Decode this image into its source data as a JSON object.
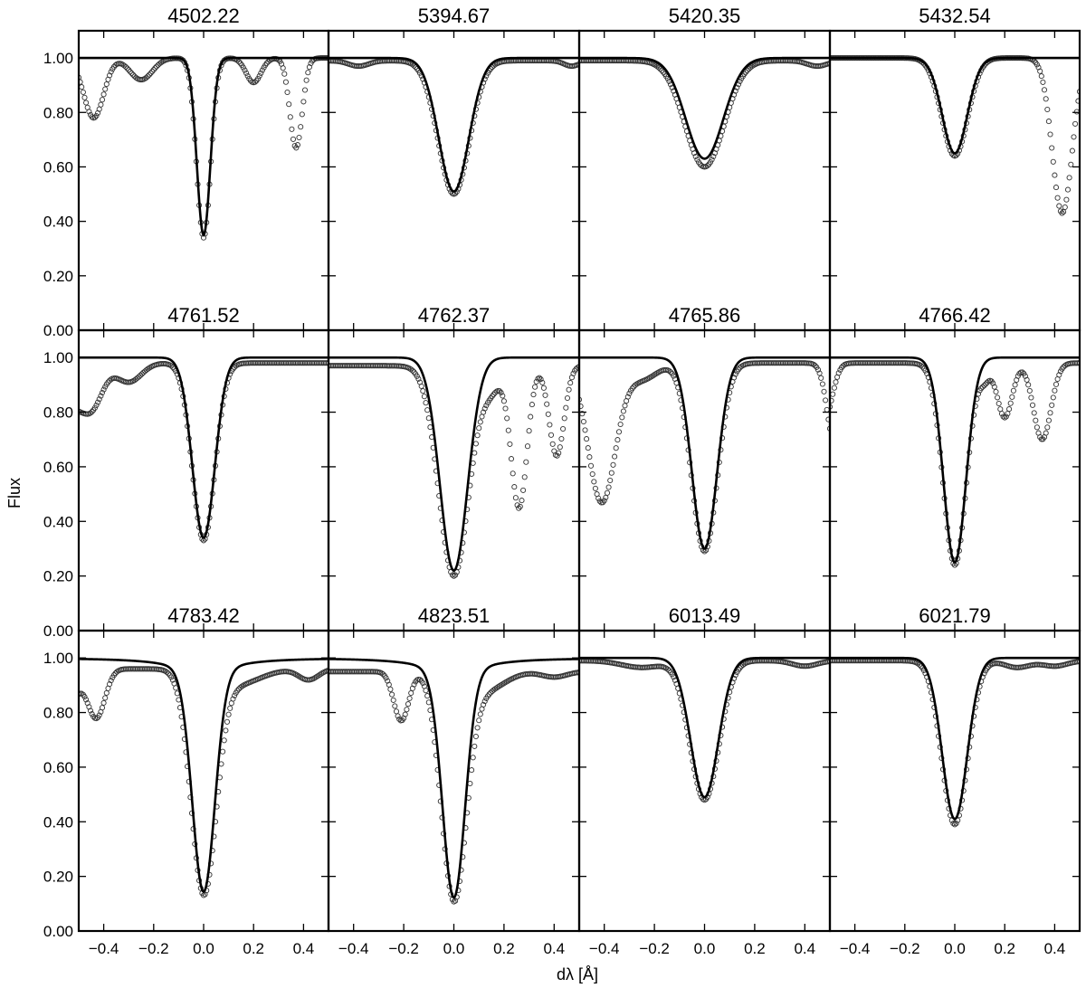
{
  "chart_data": {
    "type": "line",
    "layout": "4x3 grid of panels with shared axes",
    "xlabel": "dλ [Å]",
    "ylabel": "Flux",
    "xlim": [
      -0.5,
      0.5
    ],
    "ylim": [
      0.0,
      1.1
    ],
    "x_ticks": [
      -0.4,
      -0.2,
      0.0,
      0.2,
      0.4
    ],
    "x_tick_labels": [
      "−0.4",
      "−0.2",
      "0.0",
      "0.2",
      "0.4"
    ],
    "y_ticks": [
      0.0,
      0.2,
      0.4,
      0.6,
      0.8,
      1.0
    ],
    "y_tick_labels": [
      "0.00",
      "0.20",
      "0.40",
      "0.60",
      "0.80",
      "1.00"
    ],
    "grid": false,
    "series_styles": {
      "observed": "open circles",
      "model": "solid black line"
    },
    "panels": [
      {
        "title": "4502.22",
        "model": {
          "depth": 0.65,
          "center": 0.0,
          "sigma": 0.027,
          "wings": 0.0
        },
        "observed": {
          "depth": 0.66,
          "center": 0.0,
          "sigma": 0.028,
          "blends": [
            [
              -0.44,
              0.22,
              0.04
            ],
            [
              -0.25,
              0.08,
              0.045
            ],
            [
              0.2,
              0.09,
              0.03
            ],
            [
              0.37,
              0.33,
              0.025
            ]
          ]
        }
      },
      {
        "title": "5394.67",
        "model": {
          "depth": 0.49,
          "center": 0.0,
          "sigma": 0.06,
          "wings": 0.0
        },
        "observed": {
          "depth": 0.49,
          "center": 0.0,
          "sigma": 0.062,
          "baseline": 0.99,
          "blends": [
            [
              -0.38,
              0.02,
              0.04
            ],
            [
              0.47,
              0.02,
              0.03
            ]
          ]
        }
      },
      {
        "title": "5420.35",
        "model": {
          "depth": 0.37,
          "center": 0.0,
          "sigma": 0.075,
          "wings": 0.0
        },
        "observed": {
          "depth": 0.39,
          "center": 0.0,
          "sigma": 0.078,
          "baseline": 0.99,
          "blends": [
            [
              0.45,
              0.02,
              0.04
            ]
          ]
        }
      },
      {
        "title": "5432.54",
        "model": {
          "depth": 0.35,
          "center": 0.0,
          "sigma": 0.05,
          "wings": 0.0
        },
        "observed": {
          "depth": 0.36,
          "center": 0.0,
          "sigma": 0.052,
          "blends": [
            [
              0.43,
              0.57,
              0.04
            ]
          ]
        }
      },
      {
        "title": "4761.52",
        "model": {
          "depth": 0.66,
          "center": 0.0,
          "sigma": 0.045,
          "wings": 0.0
        },
        "observed": {
          "depth": 0.65,
          "center": 0.0,
          "sigma": 0.045,
          "baseline": 0.98,
          "blends": [
            [
              -0.45,
              0.16,
              0.045
            ],
            [
              -0.3,
              0.07,
              0.05
            ],
            [
              -0.55,
              0.15,
              0.05
            ]
          ]
        }
      },
      {
        "title": "4762.37",
        "model": {
          "depth": 0.78,
          "center": 0.0,
          "sigma": 0.055,
          "wings": 0.0
        },
        "observed": {
          "depth": 0.77,
          "center": 0.0,
          "sigma": 0.06,
          "baseline": 0.97,
          "blends": [
            [
              0.26,
              0.52,
              0.032
            ],
            [
              0.41,
              0.33,
              0.03
            ],
            [
              0.15,
              0.08,
              0.04
            ]
          ]
        }
      },
      {
        "title": "4765.86",
        "model": {
          "depth": 0.7,
          "center": 0.0,
          "sigma": 0.05,
          "wings": 0.0
        },
        "observed": {
          "depth": 0.69,
          "center": 0.0,
          "sigma": 0.052,
          "baseline": 0.98,
          "blends": [
            [
              -0.41,
              0.51,
              0.055
            ],
            [
              -0.25,
              0.06,
              0.06
            ],
            [
              0.52,
              0.3,
              0.03
            ]
          ]
        }
      },
      {
        "title": "4766.42",
        "model": {
          "depth": 0.75,
          "center": 0.0,
          "sigma": 0.045,
          "wings": 0.0
        },
        "observed": {
          "depth": 0.74,
          "center": 0.0,
          "sigma": 0.046,
          "baseline": 0.98,
          "blends": [
            [
              0.2,
              0.2,
              0.03
            ],
            [
              0.35,
              0.28,
              0.035
            ],
            [
              0.12,
              0.05,
              0.02
            ],
            [
              -0.52,
              0.2,
              0.03
            ]
          ]
        }
      },
      {
        "title": "4783.42",
        "model": {
          "depth": 0.8,
          "center": 0.0,
          "sigma": 0.045,
          "wings": 0.35
        },
        "observed": {
          "depth": 0.8,
          "center": 0.0,
          "sigma": 0.05,
          "baseline": 0.96,
          "blends": [
            [
              -0.43,
              0.18,
              0.035
            ],
            [
              -0.55,
              0.15,
              0.04
            ],
            [
              0.42,
              0.04,
              0.04
            ],
            [
              0.12,
              0.06,
              0.1
            ]
          ]
        }
      },
      {
        "title": "4823.51",
        "model": {
          "depth": 0.82,
          "center": 0.0,
          "sigma": 0.045,
          "wings": 0.35
        },
        "observed": {
          "depth": 0.82,
          "center": 0.0,
          "sigma": 0.05,
          "baseline": 0.95,
          "blends": [
            [
              -0.21,
              0.18,
              0.03
            ],
            [
              0.12,
              0.07,
              0.08
            ],
            [
              0.4,
              0.02,
              0.05
            ]
          ]
        }
      },
      {
        "title": "6013.49",
        "model": {
          "depth": 0.51,
          "center": 0.0,
          "sigma": 0.055,
          "wings": 0.0
        },
        "observed": {
          "depth": 0.51,
          "center": 0.0,
          "sigma": 0.058,
          "baseline": 0.99,
          "blends": [
            [
              -0.25,
              0.025,
              0.08
            ],
            [
              0.4,
              0.02,
              0.05
            ]
          ]
        }
      },
      {
        "title": "6021.79",
        "model": {
          "depth": 0.59,
          "center": 0.0,
          "sigma": 0.05,
          "wings": 0.0
        },
        "observed": {
          "depth": 0.6,
          "center": 0.0,
          "sigma": 0.052,
          "baseline": 0.99,
          "blends": [
            [
              0.25,
              0.025,
              0.05
            ],
            [
              0.4,
              0.02,
              0.05
            ]
          ]
        }
      }
    ]
  }
}
